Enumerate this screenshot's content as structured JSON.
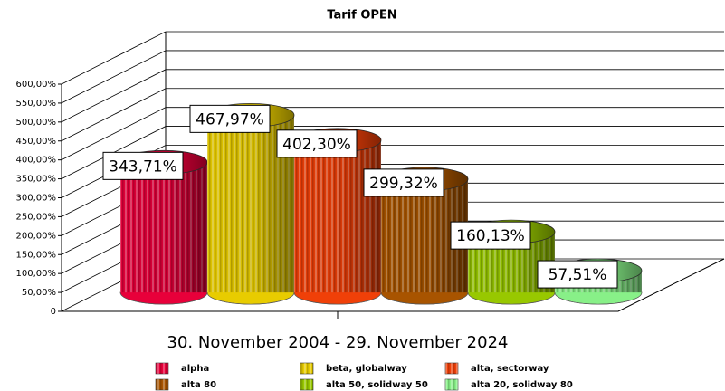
{
  "chart_data": {
    "type": "bar3d",
    "title": "Tarif OPEN",
    "categories": [
      "30. November 2004 - 29. November 2024"
    ],
    "ylim": [
      0,
      600
    ],
    "yticks": [
      0,
      {
        "value": 50,
        "label": "50,00%"
      },
      {
        "value": 100,
        "label": "100,00%"
      },
      {
        "value": 150,
        "label": "150,00%"
      },
      {
        "value": 200,
        "label": "200,00%"
      },
      {
        "value": 250,
        "label": "250,00%"
      },
      {
        "value": 300,
        "label": "300,00%"
      },
      {
        "value": 350,
        "label": "350,00%"
      },
      {
        "value": 400,
        "label": "400,00%"
      },
      {
        "value": 450,
        "label": "450,00%"
      },
      {
        "value": 500,
        "label": "500,00%"
      },
      {
        "value": 550,
        "label": "550,00%"
      },
      {
        "value": 600,
        "label": "600,00%"
      }
    ],
    "grid": true,
    "legend": "bottom",
    "series": [
      {
        "name": "alpha",
        "color": "#e8003a",
        "values": [
          343.71
        ],
        "value_labels": [
          "343,71%"
        ]
      },
      {
        "name": "beta, globalway",
        "color": "#e8cc00",
        "values": [
          467.97
        ],
        "value_labels": [
          "467,97%"
        ]
      },
      {
        "name": "alta, sectorway",
        "color": "#f04008",
        "values": [
          402.3
        ],
        "value_labels": [
          "402,30%"
        ]
      },
      {
        "name": "alta 80",
        "color": "#a85400",
        "values": [
          299.32
        ],
        "value_labels": [
          "299,32%"
        ]
      },
      {
        "name": "alta 50, solidway 50",
        "color": "#98c800",
        "values": [
          160.13
        ],
        "value_labels": [
          "160,13%"
        ]
      },
      {
        "name": "alta 20, solidway 80",
        "color": "#88f088",
        "values": [
          57.51
        ],
        "value_labels": [
          "57,51%"
        ]
      }
    ]
  }
}
